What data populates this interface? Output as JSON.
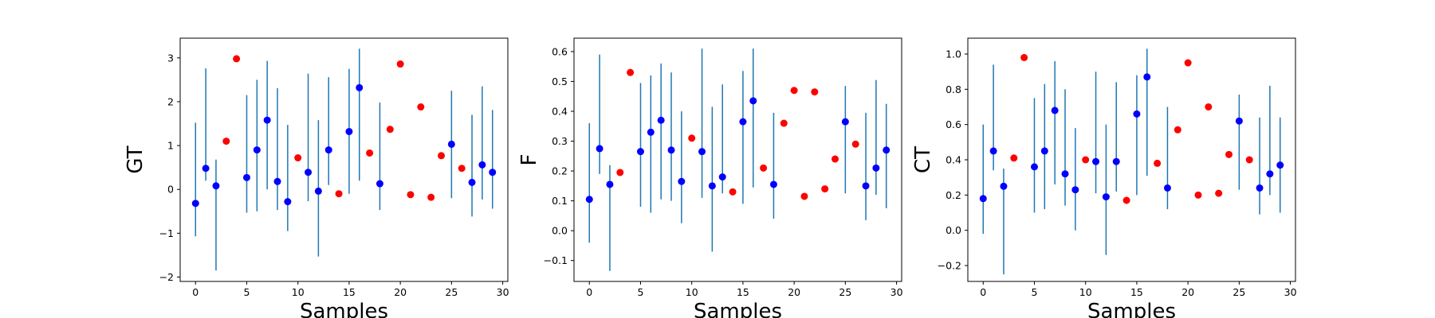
{
  "chart_data": [
    {
      "type": "scatter",
      "title": "",
      "xlabel": "Samples",
      "ylabel": "GT",
      "xlim": [
        -1.5,
        30.5
      ],
      "ylim": [
        -2.1,
        3.45
      ],
      "xticks": [
        0,
        5,
        10,
        15,
        20,
        25,
        30
      ],
      "yticks": [
        -2,
        -1,
        0,
        1,
        2,
        3
      ],
      "grid": false,
      "series": [
        {
          "color": "#0000ff",
          "errorbar_color": "#1f77b4",
          "points": [
            {
              "x": 0,
              "y": -0.32,
              "lo": -1.07,
              "hi": 1.52
            },
            {
              "x": 1,
              "y": 0.48,
              "lo": 0.2,
              "hi": 2.76
            },
            {
              "x": 2,
              "y": 0.08,
              "lo": -1.85,
              "hi": 0.68
            },
            {
              "x": 5,
              "y": 0.27,
              "lo": -0.53,
              "hi": 2.15
            },
            {
              "x": 6,
              "y": 0.9,
              "lo": -0.5,
              "hi": 2.5
            },
            {
              "x": 7,
              "y": 1.58,
              "lo": 0.0,
              "hi": 2.93
            },
            {
              "x": 8,
              "y": 0.18,
              "lo": -0.47,
              "hi": 2.31
            },
            {
              "x": 9,
              "y": -0.28,
              "lo": -0.95,
              "hi": 1.47
            },
            {
              "x": 11,
              "y": 0.39,
              "lo": -0.27,
              "hi": 2.64
            },
            {
              "x": 12,
              "y": -0.04,
              "lo": -1.53,
              "hi": 1.58
            },
            {
              "x": 13,
              "y": 0.9,
              "lo": 0.1,
              "hi": 2.56
            },
            {
              "x": 15,
              "y": 1.32,
              "lo": -0.1,
              "hi": 2.75
            },
            {
              "x": 16,
              "y": 2.32,
              "lo": 0.2,
              "hi": 3.21
            },
            {
              "x": 18,
              "y": 0.13,
              "lo": -0.47,
              "hi": 1.98
            },
            {
              "x": 25,
              "y": 1.03,
              "lo": -0.2,
              "hi": 2.25
            },
            {
              "x": 27,
              "y": 0.16,
              "lo": -0.62,
              "hi": 1.7
            },
            {
              "x": 28,
              "y": 0.56,
              "lo": -0.23,
              "hi": 2.35
            },
            {
              "x": 29,
              "y": 0.39,
              "lo": -0.44,
              "hi": 1.81
            }
          ]
        },
        {
          "color": "#ff0000",
          "points": [
            {
              "x": 3,
              "y": 1.1
            },
            {
              "x": 4,
              "y": 2.98
            },
            {
              "x": 10,
              "y": 0.72
            },
            {
              "x": 14,
              "y": -0.1
            },
            {
              "x": 17,
              "y": 0.83
            },
            {
              "x": 19,
              "y": 1.37
            },
            {
              "x": 20,
              "y": 2.86
            },
            {
              "x": 21,
              "y": -0.12
            },
            {
              "x": 22,
              "y": 1.88
            },
            {
              "x": 23,
              "y": -0.18
            },
            {
              "x": 24,
              "y": 0.77
            },
            {
              "x": 26,
              "y": 0.48
            }
          ]
        }
      ]
    },
    {
      "type": "scatter",
      "title": "",
      "xlabel": "Samples",
      "ylabel": "F",
      "xlim": [
        -1.5,
        30.5
      ],
      "ylim": [
        -0.17,
        0.645
      ],
      "xticks": [
        0,
        5,
        10,
        15,
        20,
        25,
        30
      ],
      "yticks": [
        -0.1,
        0.0,
        0.1,
        0.2,
        0.3,
        0.4,
        0.5,
        0.6
      ],
      "grid": false,
      "series": [
        {
          "color": "#0000ff",
          "errorbar_color": "#1f77b4",
          "points": [
            {
              "x": 0,
              "y": 0.105,
              "lo": -0.04,
              "hi": 0.36
            },
            {
              "x": 1,
              "y": 0.275,
              "lo": 0.19,
              "hi": 0.59
            },
            {
              "x": 2,
              "y": 0.155,
              "lo": -0.135,
              "hi": 0.22
            },
            {
              "x": 5,
              "y": 0.265,
              "lo": 0.08,
              "hi": 0.495
            },
            {
              "x": 6,
              "y": 0.33,
              "lo": 0.06,
              "hi": 0.52
            },
            {
              "x": 7,
              "y": 0.37,
              "lo": 0.105,
              "hi": 0.56
            },
            {
              "x": 8,
              "y": 0.27,
              "lo": 0.1,
              "hi": 0.53
            },
            {
              "x": 9,
              "y": 0.165,
              "lo": 0.025,
              "hi": 0.4
            },
            {
              "x": 11,
              "y": 0.265,
              "lo": 0.11,
              "hi": 0.61
            },
            {
              "x": 12,
              "y": 0.15,
              "lo": -0.07,
              "hi": 0.415
            },
            {
              "x": 13,
              "y": 0.18,
              "lo": 0.125,
              "hi": 0.49
            },
            {
              "x": 15,
              "y": 0.365,
              "lo": 0.09,
              "hi": 0.535
            },
            {
              "x": 16,
              "y": 0.435,
              "lo": 0.145,
              "hi": 0.61
            },
            {
              "x": 18,
              "y": 0.155,
              "lo": 0.04,
              "hi": 0.395
            },
            {
              "x": 25,
              "y": 0.365,
              "lo": 0.125,
              "hi": 0.485
            },
            {
              "x": 27,
              "y": 0.15,
              "lo": 0.035,
              "hi": 0.395
            },
            {
              "x": 28,
              "y": 0.21,
              "lo": 0.12,
              "hi": 0.505
            },
            {
              "x": 29,
              "y": 0.27,
              "lo": 0.075,
              "hi": 0.425
            }
          ]
        },
        {
          "color": "#ff0000",
          "points": [
            {
              "x": 3,
              "y": 0.195
            },
            {
              "x": 4,
              "y": 0.53
            },
            {
              "x": 10,
              "y": 0.31
            },
            {
              "x": 14,
              "y": 0.13
            },
            {
              "x": 17,
              "y": 0.21
            },
            {
              "x": 19,
              "y": 0.36
            },
            {
              "x": 20,
              "y": 0.47
            },
            {
              "x": 21,
              "y": 0.115
            },
            {
              "x": 22,
              "y": 0.465
            },
            {
              "x": 23,
              "y": 0.14
            },
            {
              "x": 24,
              "y": 0.24
            },
            {
              "x": 26,
              "y": 0.29
            }
          ]
        }
      ]
    },
    {
      "type": "scatter",
      "title": "",
      "xlabel": "Samples",
      "ylabel": "CT",
      "xlim": [
        -1.5,
        30.5
      ],
      "ylim": [
        -0.29,
        1.09
      ],
      "xticks": [
        0,
        5,
        10,
        15,
        20,
        25,
        30
      ],
      "yticks": [
        -0.2,
        0.0,
        0.2,
        0.4,
        0.6,
        0.8,
        1.0
      ],
      "grid": false,
      "series": [
        {
          "color": "#0000ff",
          "errorbar_color": "#1f77b4",
          "points": [
            {
              "x": 0,
              "y": 0.18,
              "lo": -0.02,
              "hi": 0.6
            },
            {
              "x": 1,
              "y": 0.45,
              "lo": 0.34,
              "hi": 0.94
            },
            {
              "x": 2,
              "y": 0.25,
              "lo": -0.25,
              "hi": 0.35
            },
            {
              "x": 5,
              "y": 0.36,
              "lo": 0.1,
              "hi": 0.75
            },
            {
              "x": 6,
              "y": 0.45,
              "lo": 0.12,
              "hi": 0.83
            },
            {
              "x": 7,
              "y": 0.68,
              "lo": 0.26,
              "hi": 0.96
            },
            {
              "x": 8,
              "y": 0.32,
              "lo": 0.14,
              "hi": 0.8
            },
            {
              "x": 9,
              "y": 0.23,
              "lo": 0.0,
              "hi": 0.58
            },
            {
              "x": 11,
              "y": 0.39,
              "lo": 0.21,
              "hi": 0.9
            },
            {
              "x": 12,
              "y": 0.19,
              "lo": -0.14,
              "hi": 0.6
            },
            {
              "x": 13,
              "y": 0.39,
              "lo": 0.22,
              "hi": 0.84
            },
            {
              "x": 15,
              "y": 0.66,
              "lo": 0.2,
              "hi": 0.88
            },
            {
              "x": 16,
              "y": 0.87,
              "lo": 0.31,
              "hi": 1.03
            },
            {
              "x": 18,
              "y": 0.24,
              "lo": 0.12,
              "hi": 0.7
            },
            {
              "x": 25,
              "y": 0.62,
              "lo": 0.23,
              "hi": 0.77
            },
            {
              "x": 27,
              "y": 0.24,
              "lo": 0.09,
              "hi": 0.64
            },
            {
              "x": 28,
              "y": 0.32,
              "lo": 0.2,
              "hi": 0.82
            },
            {
              "x": 29,
              "y": 0.37,
              "lo": 0.1,
              "hi": 0.64
            }
          ]
        },
        {
          "color": "#ff0000",
          "points": [
            {
              "x": 3,
              "y": 0.41
            },
            {
              "x": 4,
              "y": 0.98
            },
            {
              "x": 10,
              "y": 0.4
            },
            {
              "x": 14,
              "y": 0.17
            },
            {
              "x": 17,
              "y": 0.38
            },
            {
              "x": 19,
              "y": 0.57
            },
            {
              "x": 20,
              "y": 0.95
            },
            {
              "x": 21,
              "y": 0.2
            },
            {
              "x": 22,
              "y": 0.7
            },
            {
              "x": 23,
              "y": 0.21
            },
            {
              "x": 24,
              "y": 0.43
            },
            {
              "x": 26,
              "y": 0.4
            }
          ]
        }
      ]
    }
  ]
}
